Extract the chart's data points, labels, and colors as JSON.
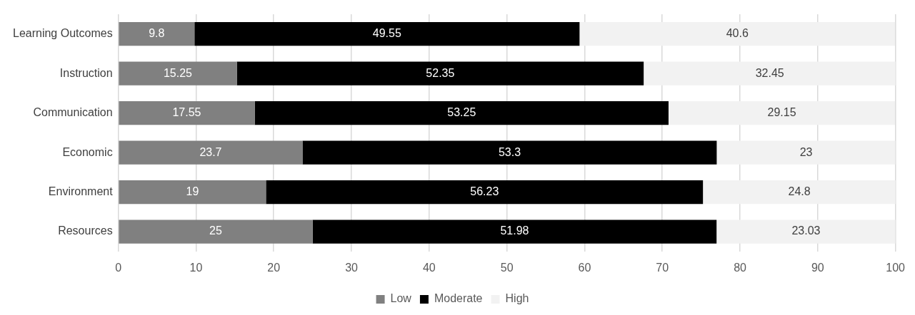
{
  "chart_data": {
    "type": "bar",
    "orientation": "horizontal",
    "stacked": true,
    "categories": [
      "Learning Outcomes",
      "Instruction",
      "Communication",
      "Economic",
      "Environment",
      "Resources"
    ],
    "series": [
      {
        "name": "Low",
        "color": "#808080",
        "values": [
          9.8,
          15.25,
          17.55,
          23.7,
          19,
          25
        ]
      },
      {
        "name": "Moderate",
        "color": "#000000",
        "values": [
          49.55,
          52.35,
          53.25,
          53.3,
          56.23,
          51.98
        ]
      },
      {
        "name": "High",
        "color": "#f2f2f2",
        "values": [
          40.6,
          32.45,
          29.15,
          23,
          24.8,
          23.03
        ]
      }
    ],
    "xlim": [
      0,
      100
    ],
    "xticks": [
      0,
      10,
      20,
      30,
      40,
      50,
      60,
      70,
      80,
      90,
      100
    ],
    "grid": "x",
    "legend": "bottom",
    "data_labels": true
  }
}
